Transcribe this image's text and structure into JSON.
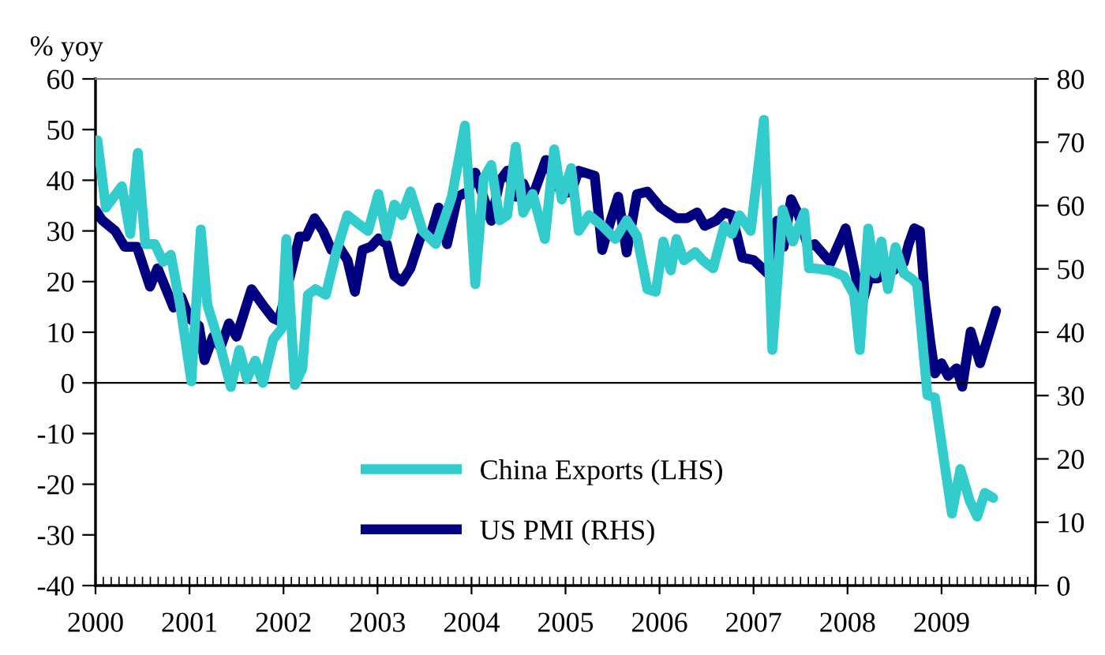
{
  "chart_data": {
    "type": "line",
    "ylabel": "% yoy",
    "xlim": [
      2000,
      2010
    ],
    "xticks": [
      {
        "value": 2000,
        "label": "2000"
      },
      {
        "value": 2001,
        "label": "2001"
      },
      {
        "value": 2002,
        "label": "2002"
      },
      {
        "value": 2003,
        "label": "2003"
      },
      {
        "value": 2004,
        "label": "2004"
      },
      {
        "value": 2005,
        "label": "2005"
      },
      {
        "value": 2006,
        "label": "2006"
      },
      {
        "value": 2007,
        "label": "2007"
      },
      {
        "value": 2008,
        "label": "2008"
      },
      {
        "value": 2009,
        "label": "2009"
      },
      {
        "value": 2010,
        "label": null
      }
    ],
    "ylim": [
      -40,
      60
    ],
    "yticks": [
      -40,
      -30,
      -20,
      -10,
      0,
      10,
      20,
      30,
      40,
      50,
      60
    ],
    "y2lim": [
      0,
      80
    ],
    "y2ticks": [
      0,
      10,
      20,
      30,
      40,
      50,
      60,
      70,
      80
    ],
    "legend": "bottom",
    "grid": false,
    "marker": "none",
    "line_style": "solid",
    "ref_lines": [
      {
        "axis": "y",
        "value": 0,
        "color": "#000000"
      }
    ],
    "series": [
      {
        "name": "China Exports (LHS)",
        "color": "#33cccc",
        "axis": "y",
        "x": [
          2000.02,
          2000.11,
          2000.28,
          2000.37,
          2000.45,
          2000.53,
          2000.63,
          2000.72,
          2000.8,
          2000.9,
          2001.02,
          2001.12,
          2001.19,
          2001.33,
          2001.44,
          2001.53,
          2001.61,
          2001.7,
          2001.78,
          2001.89,
          2001.98,
          2002.03,
          2002.12,
          2002.2,
          2002.26,
          2002.34,
          2002.45,
          2002.56,
          2002.68,
          2002.79,
          2002.9,
          2003.01,
          2003.1,
          2003.18,
          2003.26,
          2003.35,
          2003.48,
          2003.62,
          2003.79,
          2003.93,
          2004.04,
          2004.13,
          2004.21,
          2004.3,
          2004.38,
          2004.47,
          2004.55,
          2004.65,
          2004.78,
          2004.88,
          2004.96,
          2005.06,
          2005.14,
          2005.25,
          2005.39,
          2005.53,
          2005.65,
          2005.76,
          2005.87,
          2005.96,
          2006.04,
          2006.12,
          2006.18,
          2006.26,
          2006.38,
          2006.46,
          2006.57,
          2006.69,
          2006.77,
          2006.85,
          2006.97,
          2007.11,
          2007.2,
          2007.31,
          2007.42,
          2007.54,
          2007.59,
          2007.65,
          2007.82,
          2007.96,
          2008.07,
          2008.13,
          2008.22,
          2008.29,
          2008.36,
          2008.43,
          2008.51,
          2008.6,
          2008.68,
          2008.74,
          2008.85,
          2008.93,
          2009.04,
          2009.11,
          2009.2,
          2009.3,
          2009.38,
          2009.46,
          2009.55
        ],
        "values": [
          47.9,
          34.6,
          38.8,
          29.4,
          45.4,
          27.4,
          27.4,
          23.9,
          25.3,
          15.4,
          0.3,
          30.3,
          15.4,
          7.0,
          -0.8,
          6.5,
          0.8,
          4.4,
          0,
          8.6,
          10.7,
          28.4,
          -0.4,
          2.8,
          17.4,
          18.5,
          17.4,
          25.8,
          33.1,
          31.5,
          30.0,
          37.3,
          29.0,
          35.2,
          33.1,
          37.8,
          30.0,
          27.4,
          36.7,
          50.8,
          19.5,
          40.4,
          43.0,
          32.1,
          33.1,
          46.6,
          33.6,
          37.3,
          28.4,
          46.1,
          36.2,
          42.4,
          30.0,
          33.1,
          31.0,
          28.4,
          32.1,
          29.0,
          18.5,
          18.0,
          27.9,
          22.2,
          28.4,
          24.2,
          25.8,
          24.2,
          22.6,
          31.0,
          29.4,
          33.1,
          30.0,
          51.9,
          6.5,
          34.2,
          27.9,
          33.6,
          22.6,
          22.6,
          22.2,
          21.1,
          17.4,
          6.5,
          30.5,
          21.6,
          27.9,
          18.5,
          26.8,
          21.6,
          20.6,
          19.5,
          -2.4,
          -2.9,
          -17.0,
          -25.8,
          -17.0,
          -23.3,
          -26.4,
          -21.7,
          -22.7
        ]
      },
      {
        "name": "US PMI (RHS)",
        "color": "#000080",
        "axis": "y2",
        "x": [
          2000.0,
          2000.07,
          2000.21,
          2000.31,
          2000.44,
          2000.58,
          2000.66,
          2000.83,
          2000.91,
          2001.0,
          2001.1,
          2001.16,
          2001.25,
          2001.33,
          2001.42,
          2001.5,
          2001.66,
          2001.78,
          2001.89,
          2001.95,
          2002.09,
          2002.17,
          2002.24,
          2002.33,
          2002.42,
          2002.51,
          2002.59,
          2002.68,
          2002.76,
          2002.84,
          2002.93,
          2003.01,
          2003.1,
          2003.18,
          2003.26,
          2003.35,
          2003.46,
          2003.57,
          2003.65,
          2003.74,
          2003.85,
          2003.96,
          2004.04,
          2004.21,
          2004.3,
          2004.38,
          2004.47,
          2004.55,
          2004.63,
          2004.79,
          2004.89,
          2004.97,
          2005.06,
          2005.14,
          2005.31,
          2005.39,
          2005.48,
          2005.56,
          2005.65,
          2005.76,
          2005.87,
          2006.01,
          2006.18,
          2006.29,
          2006.4,
          2006.48,
          2006.6,
          2006.69,
          2006.77,
          2006.88,
          2007.0,
          2007.15,
          2007.25,
          2007.32,
          2007.4,
          2007.48,
          2007.58,
          2007.65,
          2007.82,
          2007.98,
          2008.07,
          2008.15,
          2008.23,
          2008.32,
          2008.49,
          2008.6,
          2008.65,
          2008.71,
          2008.77,
          2008.82,
          2008.88,
          2008.93,
          2009.0,
          2009.07,
          2009.16,
          2009.22,
          2009.31,
          2009.41,
          2009.58
        ],
        "values": [
          59.3,
          57.7,
          56.0,
          53.5,
          53.5,
          47.2,
          50.1,
          43.9,
          45.6,
          42.2,
          41.0,
          35.6,
          39.3,
          37.6,
          41.4,
          39.3,
          46.8,
          44.3,
          42.2,
          41.8,
          50.1,
          55.1,
          55.1,
          58.0,
          56.0,
          53.0,
          53.5,
          51.4,
          46.4,
          53.0,
          53.5,
          54.8,
          53.9,
          48.9,
          48.0,
          50.1,
          55.1,
          55.6,
          59.7,
          53.9,
          61.4,
          62.2,
          65.2,
          57.6,
          63.9,
          65.5,
          61.4,
          63.5,
          60.6,
          67.2,
          63.9,
          61.8,
          62.2,
          65.5,
          64.7,
          53.0,
          57.6,
          61.4,
          52.6,
          61.8,
          62.2,
          59.7,
          58.0,
          58.0,
          58.9,
          56.8,
          57.6,
          58.9,
          58.5,
          51.8,
          51.4,
          49.3,
          57.6,
          53.5,
          61.0,
          58.5,
          53.5,
          53.9,
          51.0,
          56.4,
          50.1,
          44.3,
          48.5,
          48.5,
          49.8,
          51.0,
          53.9,
          56.4,
          56.0,
          46.0,
          38.5,
          33.5,
          35.1,
          33.1,
          34.3,
          31.4,
          40.1,
          35.1,
          43.4
        ]
      }
    ]
  }
}
